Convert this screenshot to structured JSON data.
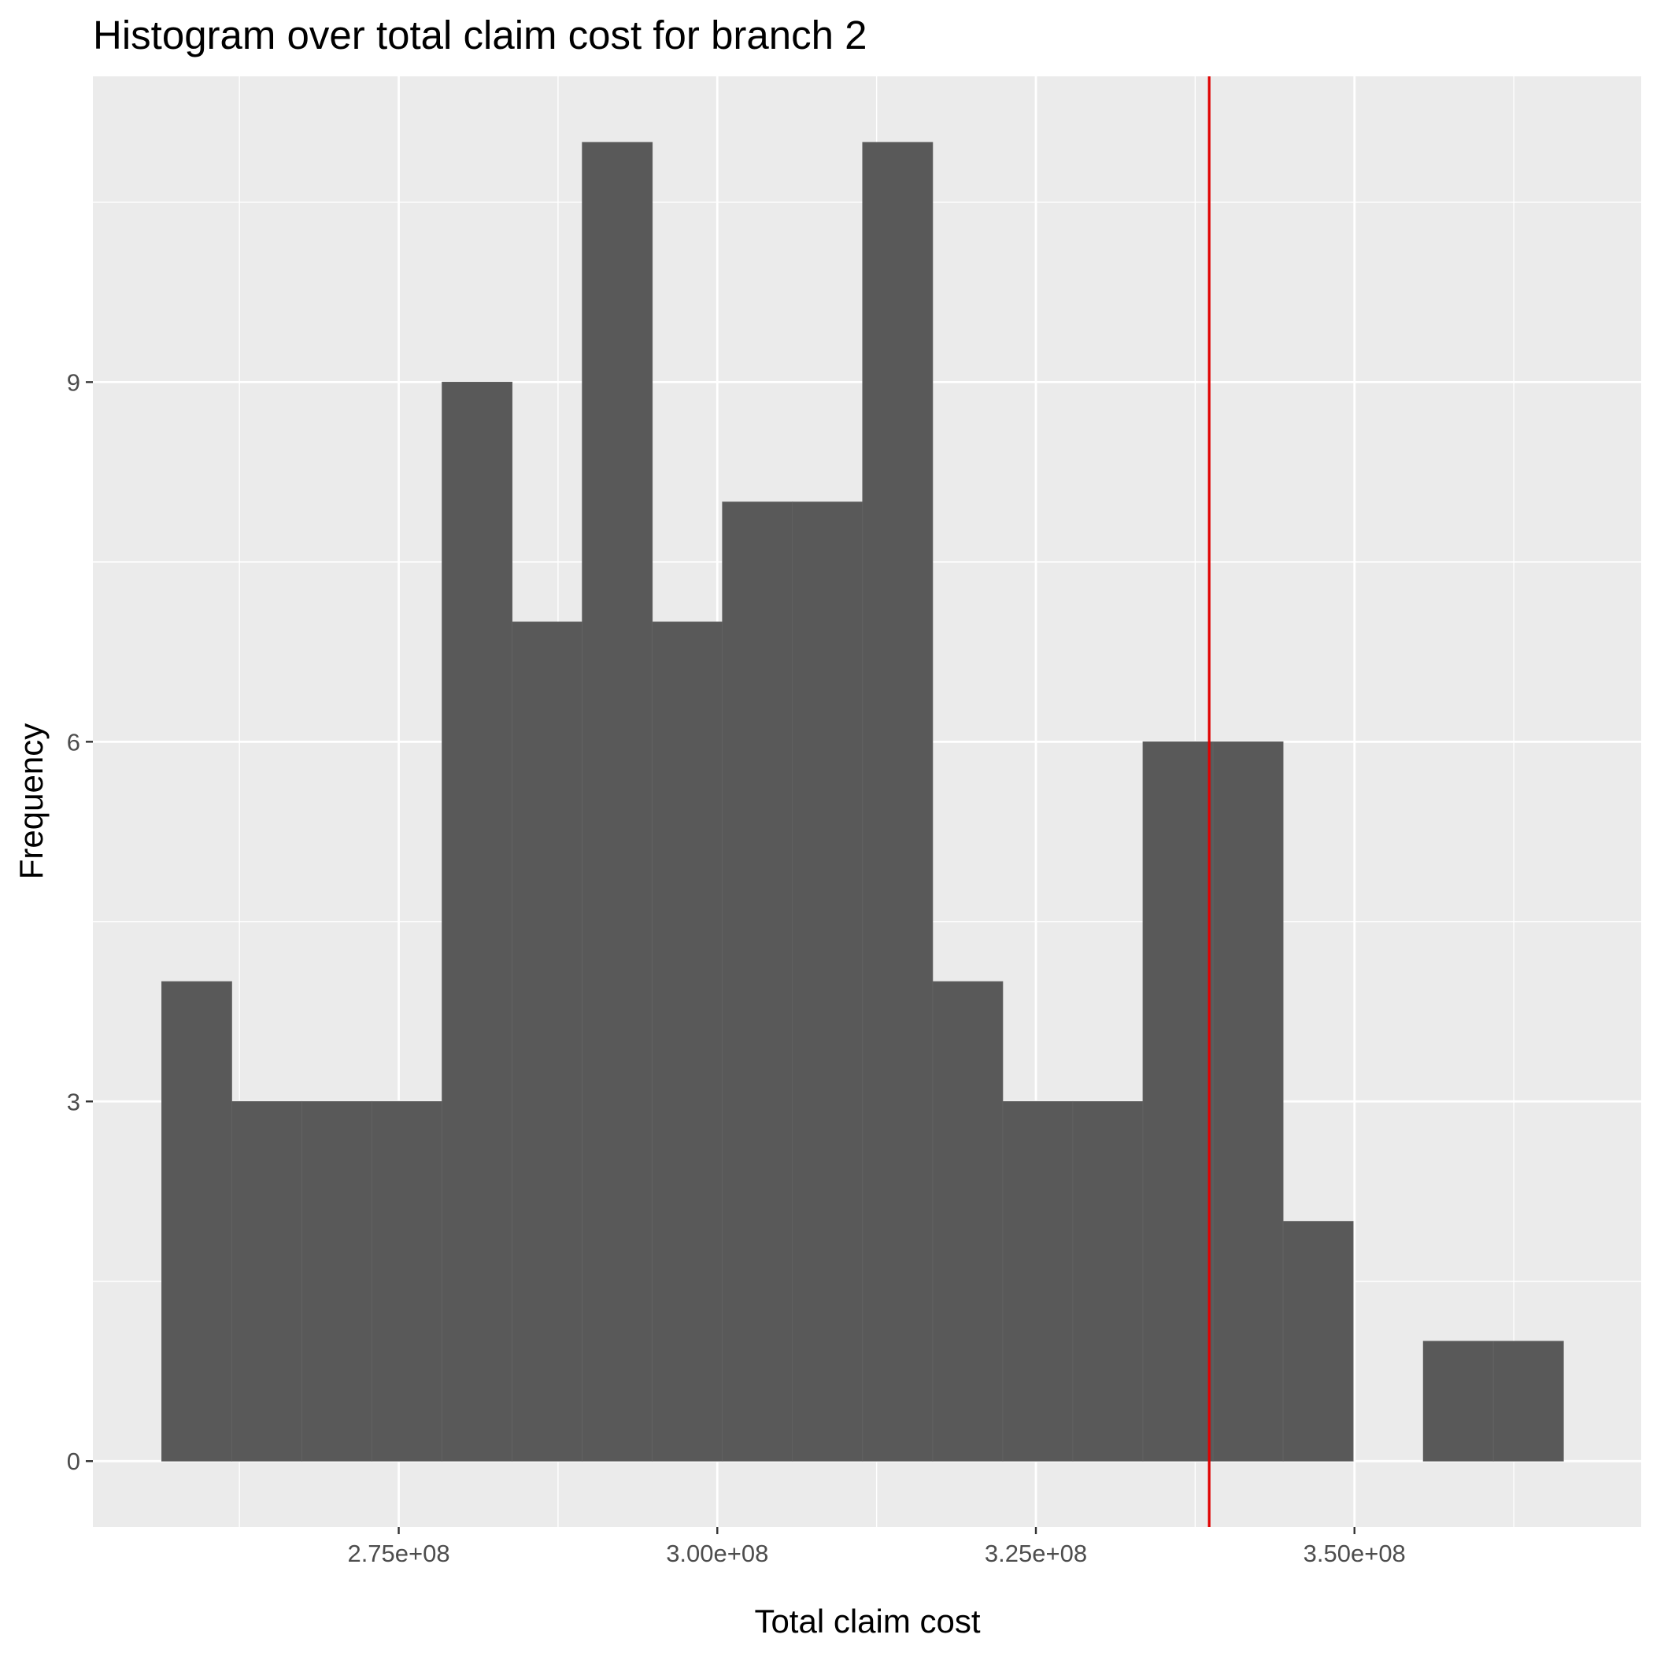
{
  "chart_data": {
    "type": "bar",
    "title": "Histogram over total claim cost for branch 2",
    "xlabel": "Total claim cost",
    "ylabel": "Frequency",
    "bin_width": 5500000,
    "bin_starts": [
      256400000,
      261900000,
      267400000,
      272900000,
      278400000,
      283900000,
      289400000,
      294900000,
      300400000,
      305900000,
      311400000,
      316900000,
      322400000,
      327900000,
      333400000,
      338900000,
      344400000,
      349900000,
      355400000,
      360900000
    ],
    "values": [
      4,
      3,
      3,
      3,
      9,
      7,
      11,
      7,
      8,
      8,
      11,
      4,
      3,
      3,
      6,
      6,
      2,
      0,
      1,
      1
    ],
    "xlim": [
      251000000,
      372500000
    ],
    "ylim": [
      -0.55,
      11.55
    ],
    "x_ticks": [
      275000000,
      300000000,
      325000000,
      350000000
    ],
    "x_tick_labels": [
      "2.75e+08",
      "3.00e+08",
      "3.25e+08",
      "3.50e+08"
    ],
    "y_ticks": [
      0,
      3,
      6,
      9
    ],
    "y_tick_labels": [
      "0",
      "3",
      "6",
      "9"
    ],
    "reference_line": {
      "x": 338600000,
      "color": "#e00000"
    },
    "colors": {
      "panel": "#ebebeb",
      "grid": "#ffffff",
      "bar": "#595959",
      "bar_edge": "#646464"
    },
    "grid": true,
    "legend": "none"
  }
}
